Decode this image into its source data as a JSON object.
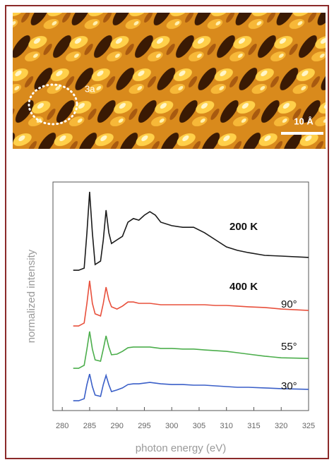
{
  "stm_image": {
    "cell_label": "3a",
    "scale_bar": "10 Å"
  },
  "chart_data": {
    "type": "line",
    "xlabel": "photon energy (eV)",
    "ylabel": "normalized intensity",
    "annotations": [
      "400 K"
    ],
    "x": [
      282,
      283,
      284,
      284.5,
      285,
      285.5,
      286,
      287,
      287.5,
      288,
      288.5,
      289,
      290,
      291,
      292,
      293,
      294,
      295,
      296,
      297,
      298,
      300,
      302,
      304,
      306,
      308,
      310,
      312,
      314,
      317,
      320,
      325
    ],
    "series": [
      {
        "name": "200 K",
        "color": "#1a1a1a",
        "values": [
          61.4,
          61.4,
          62.3,
          77.8,
          95.7,
          77.8,
          63.9,
          65.4,
          74.7,
          87.7,
          77.8,
          73.1,
          74.7,
          76.2,
          82.4,
          84.0,
          83.3,
          85.5,
          87.0,
          85.5,
          82.4,
          80.9,
          80.2,
          80.2,
          77.8,
          74.7,
          71.6,
          70.1,
          69.1,
          67.9,
          67.6,
          67.0
        ]
      },
      {
        "name": "90°",
        "color": "#e8503c",
        "values": [
          37.0,
          37.0,
          38.3,
          46.9,
          56.8,
          46.9,
          42.3,
          41.4,
          46.9,
          54.0,
          48.5,
          45.4,
          44.4,
          45.7,
          47.5,
          47.5,
          46.9,
          46.9,
          46.9,
          46.6,
          46.3,
          46.3,
          46.3,
          46.3,
          46.3,
          46.0,
          46.0,
          45.7,
          45.4,
          45.1,
          44.4,
          43.8
        ]
      },
      {
        "name": "55°",
        "color": "#4cae4c",
        "values": [
          18.5,
          18.5,
          19.8,
          26.9,
          34.6,
          26.9,
          22.2,
          21.6,
          26.9,
          32.7,
          27.8,
          24.4,
          24.7,
          25.9,
          27.5,
          27.8,
          27.8,
          27.8,
          27.8,
          27.5,
          27.2,
          27.2,
          26.9,
          26.9,
          26.5,
          26.2,
          25.9,
          25.3,
          24.7,
          23.8,
          23.1,
          22.8
        ]
      },
      {
        "name": "30°",
        "color": "#3a5fc8",
        "values": [
          4.3,
          4.3,
          5.2,
          11.4,
          16.0,
          10.5,
          6.8,
          6.2,
          11.4,
          15.4,
          11.4,
          8.3,
          9.0,
          9.9,
          11.4,
          11.7,
          11.7,
          12.0,
          12.3,
          12.0,
          11.7,
          11.4,
          11.4,
          11.1,
          11.1,
          10.8,
          10.5,
          10.2,
          10.2,
          9.9,
          9.6,
          9.3
        ]
      }
    ],
    "xlim": [
      278.3,
      325
    ],
    "xticks": [
      280,
      285,
      290,
      295,
      300,
      305,
      310,
      315,
      320,
      325
    ],
    "ylim": [
      0,
      100
    ]
  }
}
